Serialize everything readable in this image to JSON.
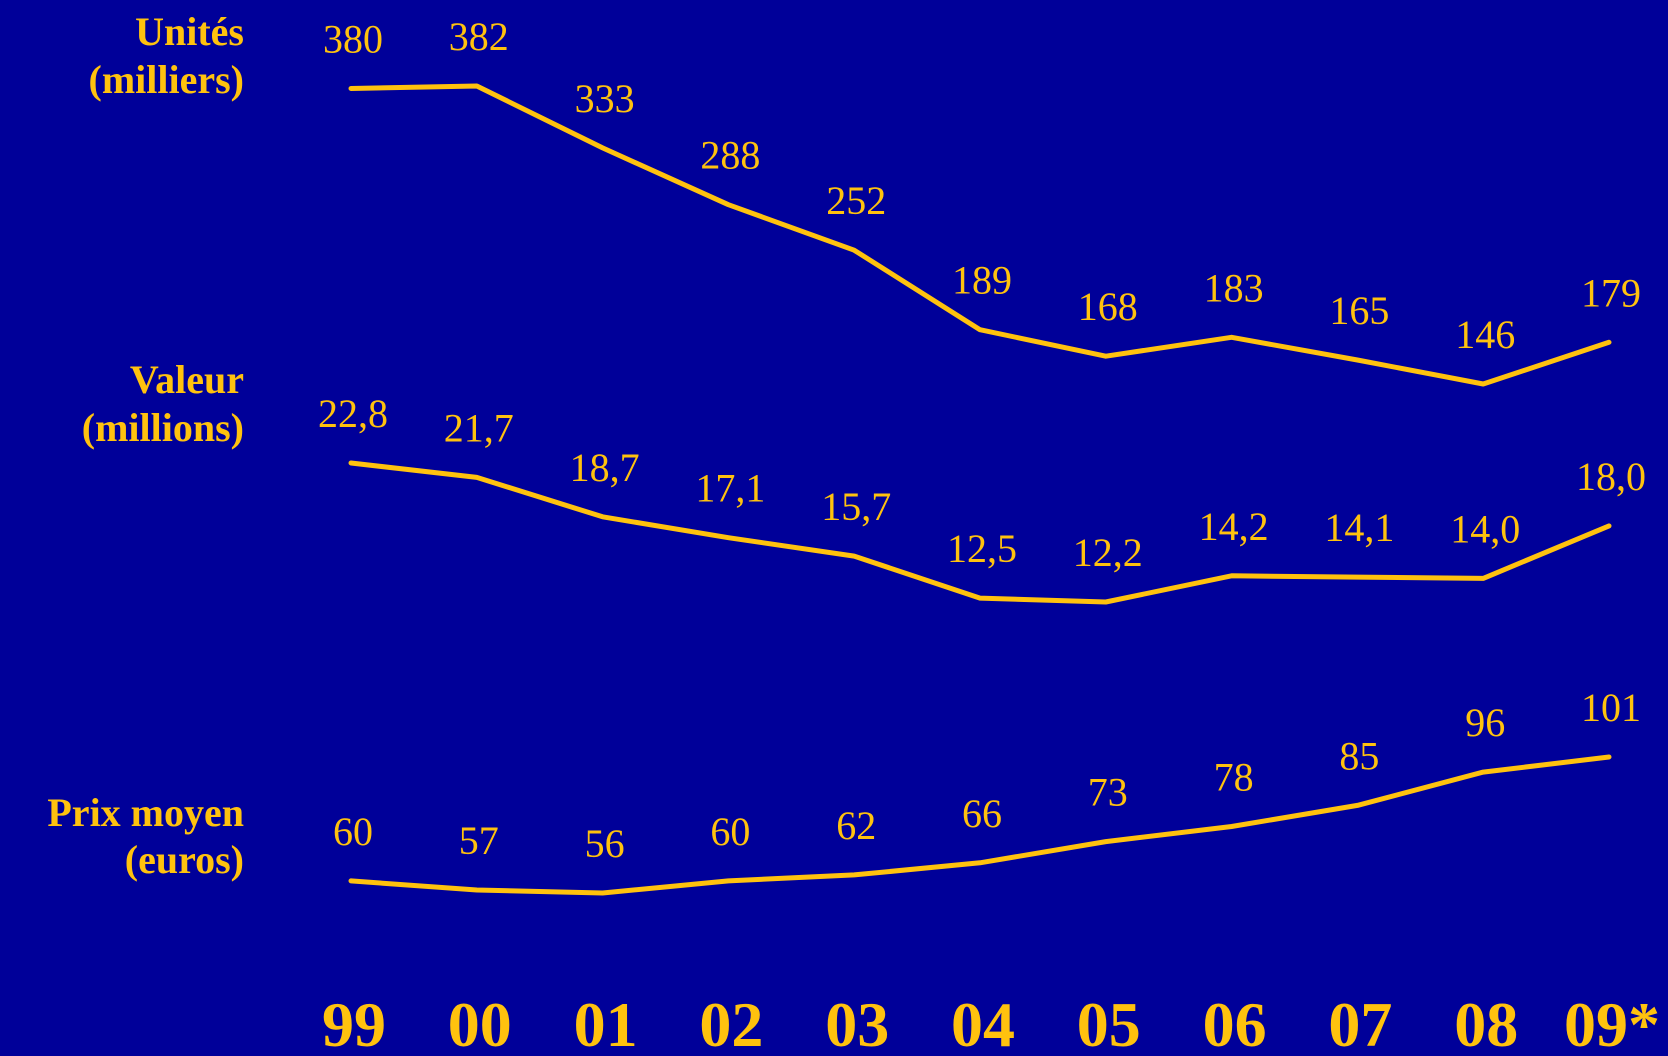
{
  "colors": {
    "background": "#000099",
    "accent": "#FFC20E"
  },
  "chart_data": {
    "type": "line",
    "categories": [
      "99",
      "00",
      "01",
      "02",
      "03",
      "04",
      "05",
      "06",
      "07",
      "08",
      "09*"
    ],
    "series": [
      {
        "name": "Unités (milliers)",
        "label_lines": [
          "Unités",
          "(milliers)"
        ],
        "values": [
          380,
          382,
          333,
          288,
          252,
          189,
          168,
          183,
          165,
          146,
          179
        ],
        "value_labels": [
          "380",
          "382",
          "333",
          "288",
          "252",
          "189",
          "168",
          "183",
          "165",
          "146",
          "179"
        ]
      },
      {
        "name": "Valeur (millions)",
        "label_lines": [
          "Valeur",
          "(millions)"
        ],
        "values": [
          22.8,
          21.7,
          18.7,
          17.1,
          15.7,
          12.5,
          12.2,
          14.2,
          14.1,
          14.0,
          18.0
        ],
        "value_labels": [
          "22,8",
          "21,7",
          "18,7",
          "17,1",
          "15,7",
          "12,5",
          "12,2",
          "14,2",
          "14,1",
          "14,0",
          "18,0"
        ]
      },
      {
        "name": "Prix moyen (euros)",
        "label_lines": [
          "Prix moyen",
          "(euros)"
        ],
        "values": [
          60,
          57,
          56,
          60,
          62,
          66,
          73,
          78,
          85,
          96,
          101
        ],
        "value_labels": [
          "60",
          "57",
          "56",
          "60",
          "62",
          "66",
          "73",
          "78",
          "85",
          "96",
          "101"
        ]
      }
    ],
    "grid": false,
    "legend": "left"
  }
}
